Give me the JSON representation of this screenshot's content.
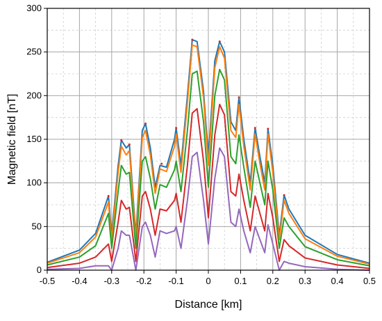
{
  "chart_data": {
    "type": "line",
    "title": "",
    "xlabel": "Distance [km]",
    "ylabel": "Magnetic field [nT]",
    "xlim": [
      -0.5,
      0.5
    ],
    "ylim": [
      0,
      300
    ],
    "grid": true,
    "x_ticks": [
      -0.5,
      -0.4,
      -0.3,
      -0.2,
      -0.1,
      0,
      0.1,
      0.2,
      0.3,
      0.4,
      0.5
    ],
    "x_tick_labels": [
      "-0.5",
      "-0.4",
      "-0.3",
      "-0.2",
      "-0.1",
      "0",
      "0.1",
      "0.2",
      "0.3",
      "0.4",
      "0.5"
    ],
    "y_ticks": [
      0,
      50,
      100,
      150,
      200,
      250,
      300
    ],
    "y_tick_labels": [
      "0",
      "50",
      "100",
      "150",
      "200",
      "250",
      "300"
    ],
    "legend": "none",
    "series_colors": [
      "#1f77b4",
      "#ff7f0e",
      "#2ca02c",
      "#d62728",
      "#9467bd",
      "#8c564b",
      "#e377c2",
      "#7f7f7f",
      "#bcbd22",
      "#17becf"
    ],
    "envelope_peaks": [
      {
        "x": -0.31,
        "y": 85
      },
      {
        "x": -0.27,
        "y": 149
      },
      {
        "x": -0.245,
        "y": 144
      },
      {
        "x": -0.195,
        "y": 168
      },
      {
        "x": -0.145,
        "y": 122
      },
      {
        "x": -0.1,
        "y": 163
      },
      {
        "x": -0.05,
        "y": 264
      },
      {
        "x": 0.035,
        "y": 262
      },
      {
        "x": 0.095,
        "y": 198
      },
      {
        "x": 0.145,
        "y": 163
      },
      {
        "x": 0.185,
        "y": 162
      },
      {
        "x": 0.235,
        "y": 86
      }
    ],
    "series": [
      {
        "values": [
          [
            -0.5,
            9
          ],
          [
            -0.4,
            23
          ],
          [
            -0.35,
            42
          ],
          [
            -0.31,
            85
          ],
          [
            -0.3,
            40
          ],
          [
            -0.28,
            120
          ],
          [
            -0.27,
            149
          ],
          [
            -0.255,
            140
          ],
          [
            -0.245,
            144
          ],
          [
            -0.225,
            40
          ],
          [
            -0.205,
            160
          ],
          [
            -0.195,
            168
          ],
          [
            -0.18,
            140
          ],
          [
            -0.165,
            95
          ],
          [
            -0.15,
            120
          ],
          [
            -0.13,
            118
          ],
          [
            -0.105,
            150
          ],
          [
            -0.1,
            163
          ],
          [
            -0.085,
            120
          ],
          [
            -0.065,
            200
          ],
          [
            -0.05,
            264
          ],
          [
            -0.035,
            262
          ],
          [
            -0.015,
            205
          ],
          [
            0,
            130
          ],
          [
            0.02,
            240
          ],
          [
            0.035,
            262
          ],
          [
            0.05,
            250
          ],
          [
            0.07,
            170
          ],
          [
            0.085,
            160
          ],
          [
            0.095,
            198
          ],
          [
            0.11,
            150
          ],
          [
            0.13,
            100
          ],
          [
            0.145,
            163
          ],
          [
            0.16,
            130
          ],
          [
            0.175,
            100
          ],
          [
            0.185,
            162
          ],
          [
            0.2,
            120
          ],
          [
            0.22,
            40
          ],
          [
            0.235,
            86
          ],
          [
            0.25,
            70
          ],
          [
            0.3,
            40
          ],
          [
            0.4,
            18
          ],
          [
            0.5,
            8
          ]
        ]
      },
      {
        "values": [
          [
            -0.5,
            8
          ],
          [
            -0.4,
            20
          ],
          [
            -0.35,
            38
          ],
          [
            -0.31,
            78
          ],
          [
            -0.3,
            35
          ],
          [
            -0.28,
            112
          ],
          [
            -0.27,
            142
          ],
          [
            -0.255,
            132
          ],
          [
            -0.245,
            137
          ],
          [
            -0.225,
            35
          ],
          [
            -0.205,
            152
          ],
          [
            -0.195,
            160
          ],
          [
            -0.18,
            132
          ],
          [
            -0.165,
            88
          ],
          [
            -0.15,
            116
          ],
          [
            -0.13,
            113
          ],
          [
            -0.105,
            142
          ],
          [
            -0.1,
            156
          ],
          [
            -0.085,
            112
          ],
          [
            -0.065,
            192
          ],
          [
            -0.05,
            258
          ],
          [
            -0.035,
            256
          ],
          [
            -0.015,
            198
          ],
          [
            0,
            120
          ],
          [
            0.02,
            232
          ],
          [
            0.035,
            256
          ],
          [
            0.05,
            243
          ],
          [
            0.07,
            160
          ],
          [
            0.085,
            152
          ],
          [
            0.095,
            190
          ],
          [
            0.11,
            142
          ],
          [
            0.13,
            92
          ],
          [
            0.145,
            156
          ],
          [
            0.16,
            122
          ],
          [
            0.175,
            92
          ],
          [
            0.185,
            156
          ],
          [
            0.2,
            112
          ],
          [
            0.22,
            35
          ],
          [
            0.235,
            80
          ],
          [
            0.25,
            65
          ],
          [
            0.3,
            36
          ],
          [
            0.4,
            16
          ],
          [
            0.5,
            7
          ]
        ]
      },
      {
        "values": [
          [
            -0.5,
            6
          ],
          [
            -0.4,
            15
          ],
          [
            -0.35,
            28
          ],
          [
            -0.31,
            65
          ],
          [
            -0.3,
            25
          ],
          [
            -0.28,
            90
          ],
          [
            -0.27,
            120
          ],
          [
            -0.255,
            110
          ],
          [
            -0.245,
            112
          ],
          [
            -0.225,
            25
          ],
          [
            -0.205,
            125
          ],
          [
            -0.195,
            130
          ],
          [
            -0.18,
            105
          ],
          [
            -0.165,
            70
          ],
          [
            -0.15,
            98
          ],
          [
            -0.13,
            95
          ],
          [
            -0.105,
            115
          ],
          [
            -0.1,
            125
          ],
          [
            -0.085,
            90
          ],
          [
            -0.065,
            160
          ],
          [
            -0.05,
            225
          ],
          [
            -0.035,
            228
          ],
          [
            -0.015,
            170
          ],
          [
            0,
            95
          ],
          [
            0.02,
            200
          ],
          [
            0.035,
            230
          ],
          [
            0.05,
            218
          ],
          [
            0.07,
            130
          ],
          [
            0.085,
            122
          ],
          [
            0.095,
            155
          ],
          [
            0.11,
            118
          ],
          [
            0.13,
            72
          ],
          [
            0.145,
            125
          ],
          [
            0.16,
            100
          ],
          [
            0.175,
            75
          ],
          [
            0.185,
            125
          ],
          [
            0.2,
            92
          ],
          [
            0.22,
            25
          ],
          [
            0.235,
            60
          ],
          [
            0.25,
            50
          ],
          [
            0.3,
            27
          ],
          [
            0.4,
            12
          ],
          [
            0.5,
            5
          ]
        ]
      },
      {
        "values": [
          [
            -0.5,
            3
          ],
          [
            -0.4,
            8
          ],
          [
            -0.35,
            15
          ],
          [
            -0.31,
            30
          ],
          [
            -0.3,
            10
          ],
          [
            -0.28,
            55
          ],
          [
            -0.27,
            80
          ],
          [
            -0.255,
            70
          ],
          [
            -0.245,
            72
          ],
          [
            -0.225,
            10
          ],
          [
            -0.205,
            85
          ],
          [
            -0.195,
            90
          ],
          [
            -0.18,
            70
          ],
          [
            -0.165,
            40
          ],
          [
            -0.15,
            70
          ],
          [
            -0.13,
            68
          ],
          [
            -0.105,
            80
          ],
          [
            -0.1,
            88
          ],
          [
            -0.085,
            55
          ],
          [
            -0.065,
            120
          ],
          [
            -0.05,
            180
          ],
          [
            -0.035,
            185
          ],
          [
            -0.015,
            125
          ],
          [
            0,
            60
          ],
          [
            0.02,
            155
          ],
          [
            0.035,
            190
          ],
          [
            0.05,
            178
          ],
          [
            0.07,
            90
          ],
          [
            0.085,
            85
          ],
          [
            0.095,
            110
          ],
          [
            0.11,
            80
          ],
          [
            0.13,
            45
          ],
          [
            0.145,
            85
          ],
          [
            0.16,
            65
          ],
          [
            0.175,
            45
          ],
          [
            0.185,
            88
          ],
          [
            0.2,
            60
          ],
          [
            0.22,
            10
          ],
          [
            0.235,
            35
          ],
          [
            0.25,
            28
          ],
          [
            0.3,
            14
          ],
          [
            0.4,
            6
          ],
          [
            0.5,
            2
          ]
        ]
      },
      {
        "values": [
          [
            -0.5,
            1
          ],
          [
            -0.4,
            2
          ],
          [
            -0.35,
            5
          ],
          [
            -0.31,
            5
          ],
          [
            -0.3,
            0
          ],
          [
            -0.28,
            25
          ],
          [
            -0.27,
            45
          ],
          [
            -0.255,
            40
          ],
          [
            -0.245,
            40
          ],
          [
            -0.225,
            0
          ],
          [
            -0.205,
            50
          ],
          [
            -0.195,
            55
          ],
          [
            -0.18,
            40
          ],
          [
            -0.165,
            15
          ],
          [
            -0.15,
            45
          ],
          [
            -0.13,
            42
          ],
          [
            -0.105,
            45
          ],
          [
            -0.1,
            50
          ],
          [
            -0.085,
            25
          ],
          [
            -0.065,
            80
          ],
          [
            -0.05,
            130
          ],
          [
            -0.035,
            135
          ],
          [
            -0.015,
            80
          ],
          [
            0,
            30
          ],
          [
            0.02,
            105
          ],
          [
            0.035,
            140
          ],
          [
            0.05,
            130
          ],
          [
            0.07,
            55
          ],
          [
            0.085,
            50
          ],
          [
            0.095,
            70
          ],
          [
            0.11,
            45
          ],
          [
            0.13,
            20
          ],
          [
            0.145,
            50
          ],
          [
            0.16,
            35
          ],
          [
            0.175,
            20
          ],
          [
            0.185,
            52
          ],
          [
            0.2,
            30
          ],
          [
            0.22,
            0
          ],
          [
            0.235,
            10
          ],
          [
            0.25,
            8
          ],
          [
            0.3,
            4
          ],
          [
            0.4,
            1
          ],
          [
            0.5,
            0
          ]
        ]
      }
    ]
  }
}
